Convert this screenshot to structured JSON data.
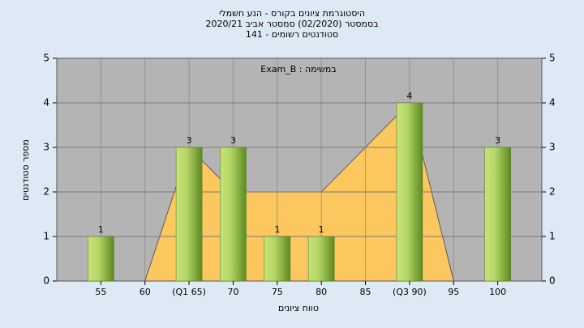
{
  "chart_data": {
    "type": "bar",
    "title": "היסטוגרמת ציונים בקורס - הנע חשמלי",
    "subtitle": "בסמסטר  (02/2020)  סמסטר אביב 2020/21",
    "subtitle2": "סטודנטים רשומים - 141",
    "annotation": "במשימה : Exam_B",
    "x_label": "טווח ציונים",
    "y_label": "מספר סטודנטים",
    "categories": [
      "55",
      "60",
      "(Q1 65)",
      "70",
      "75",
      "80",
      "85",
      "(Q3 90)",
      "95",
      "100"
    ],
    "values": [
      1,
      0,
      3,
      3,
      1,
      1,
      0,
      4,
      0,
      3
    ],
    "color": "#9cc651",
    "area": {
      "color": "#ffc85a",
      "values": [
        null,
        0,
        3,
        2,
        2,
        2,
        3,
        4,
        0,
        null
      ]
    },
    "ylim": [
      0,
      5
    ],
    "yticks": [
      0,
      1,
      2,
      3,
      4,
      5
    ],
    "grid": true
  }
}
